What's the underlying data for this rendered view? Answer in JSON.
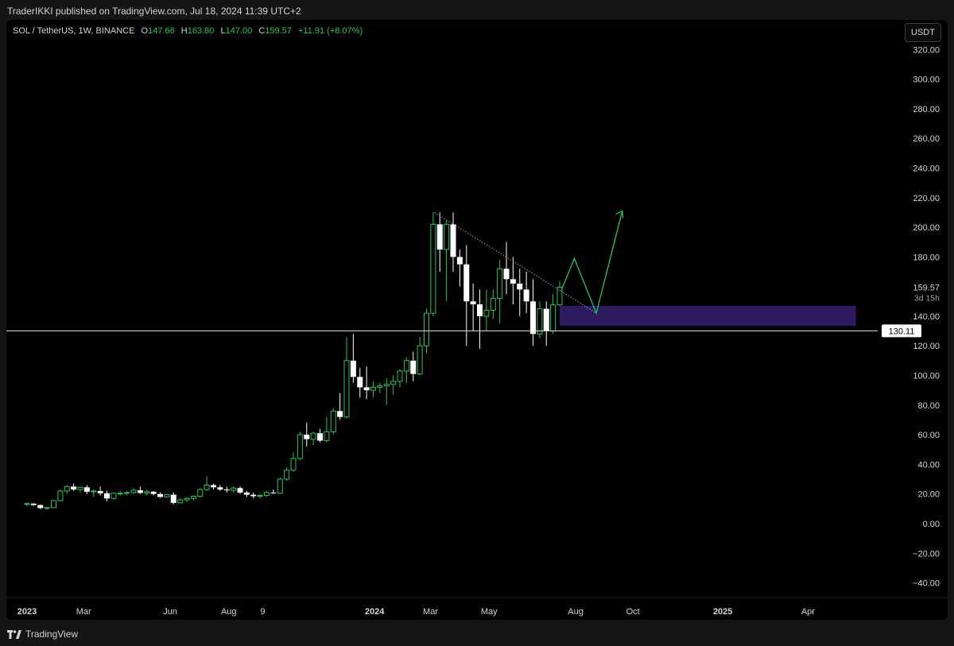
{
  "published_text": "TraderIKKI published on TradingView.com, Jul 18, 2024 11:39 UTC+2",
  "legend": {
    "symbol": "SOL / TetherUS, 1W, BINANCE",
    "o_label": "O",
    "o": "147.66",
    "h_label": "H",
    "h": "163.80",
    "l_label": "L",
    "l": "147.00",
    "c_label": "C",
    "c": "159.57",
    "change": "+11.91 (+8.07%)"
  },
  "currency_button": "USDT",
  "footer_brand": "TradingView",
  "colors": {
    "up": "#22c55e",
    "down": "#ffffff",
    "zone": "#2e1a5e",
    "background": "#000000"
  },
  "chart_data": {
    "type": "candlestick",
    "symbol": "SOL / TetherUS",
    "interval": "1W",
    "exchange": "BINANCE",
    "y_ticks": [
      "320.00",
      "300.00",
      "280.00",
      "260.00",
      "240.00",
      "220.00",
      "200.00",
      "180.00",
      "140.00",
      "120.00",
      "100.00",
      "80.00",
      "60.00",
      "40.00",
      "20.00",
      "0.00",
      "−20.00",
      "−40.00"
    ],
    "y_tick_values": [
      320,
      300,
      280,
      260,
      240,
      220,
      200,
      180,
      140,
      120,
      100,
      80,
      60,
      40,
      20,
      0,
      -20,
      -40
    ],
    "ylim": [
      -44,
      325
    ],
    "x_ticks": [
      {
        "label": "2023",
        "bold": true,
        "week": 0
      },
      {
        "label": "Mar",
        "bold": false,
        "week": 8.5
      },
      {
        "label": "Jun",
        "bold": false,
        "week": 21.5
      },
      {
        "label": "Aug",
        "bold": false,
        "week": 30.3
      },
      {
        "label": "9",
        "bold": false,
        "week": 35.4
      },
      {
        "label": "2024",
        "bold": true,
        "week": 52.2
      },
      {
        "label": "Mar",
        "bold": false,
        "week": 60.6
      },
      {
        "label": "May",
        "bold": false,
        "week": 69.4
      },
      {
        "label": "Aug",
        "bold": false,
        "week": 82.4
      },
      {
        "label": "Oct",
        "bold": false,
        "week": 91
      },
      {
        "label": "2025",
        "bold": true,
        "week": 104.5
      },
      {
        "label": "Apr",
        "bold": false,
        "week": 117.3
      }
    ],
    "candles": [
      [
        13,
        14,
        12,
        13.5
      ],
      [
        13.5,
        13.8,
        12,
        12.5
      ],
      [
        12.5,
        13,
        9.8,
        10.5
      ],
      [
        10.5,
        11,
        9.5,
        10.8
      ],
      [
        10.8,
        16,
        10.5,
        15.5
      ],
      [
        15.5,
        23,
        15,
        22
      ],
      [
        22,
        26,
        20,
        25
      ],
      [
        25,
        27,
        22,
        23
      ],
      [
        23,
        25,
        21,
        24.5
      ],
      [
        24.5,
        26,
        20,
        21.5
      ],
      [
        21.5,
        23,
        18,
        22
      ],
      [
        22,
        25,
        19,
        20.5
      ],
      [
        20.5,
        22,
        15,
        17
      ],
      [
        17,
        21,
        16,
        20.5
      ],
      [
        20.5,
        22,
        19,
        20.5
      ],
      [
        20.5,
        22,
        19,
        21
      ],
      [
        21,
        24,
        20,
        22.5
      ],
      [
        22.5,
        25,
        20,
        20.7
      ],
      [
        20.7,
        23,
        19,
        21.5
      ],
      [
        21.5,
        22,
        19,
        20
      ],
      [
        20,
        21,
        17.5,
        18
      ],
      [
        18,
        20,
        17.5,
        19.5
      ],
      [
        19.5,
        21,
        13,
        14
      ],
      [
        14,
        17,
        13.5,
        16
      ],
      [
        16,
        18,
        14.5,
        17
      ],
      [
        17,
        19,
        15.5,
        18.5
      ],
      [
        18.5,
        24,
        17.5,
        23
      ],
      [
        23,
        32,
        22,
        26
      ],
      [
        26,
        27,
        23,
        24.5
      ],
      [
        24.5,
        26,
        22,
        23
      ],
      [
        23,
        25,
        21,
        22.5
      ],
      [
        22.5,
        25,
        21,
        24
      ],
      [
        24,
        25,
        20,
        21
      ],
      [
        21,
        22,
        18,
        19.5
      ],
      [
        19.5,
        21,
        17,
        18.5
      ],
      [
        18.5,
        20,
        17,
        19
      ],
      [
        19,
        22,
        18,
        21
      ],
      [
        21,
        23,
        20,
        20.5
      ],
      [
        20.5,
        31,
        20,
        30
      ],
      [
        30,
        38,
        29,
        36
      ],
      [
        36,
        48,
        35,
        44
      ],
      [
        44,
        62,
        43,
        60
      ],
      [
        60,
        68,
        52,
        57
      ],
      [
        57,
        62,
        53,
        61
      ],
      [
        61,
        64,
        55,
        56
      ],
      [
        56,
        72,
        55,
        62
      ],
      [
        62,
        78,
        60,
        76
      ],
      [
        76,
        88,
        70,
        72
      ],
      [
        72,
        126,
        71,
        110
      ],
      [
        110,
        128,
        95,
        99
      ],
      [
        99,
        105,
        85,
        92
      ],
      [
        92,
        106,
        84,
        90
      ],
      [
        90,
        96,
        85,
        92
      ],
      [
        92,
        95,
        88,
        93
      ],
      [
        93,
        98,
        80,
        94
      ],
      [
        94,
        100,
        87,
        96
      ],
      [
        96,
        104,
        92,
        103
      ],
      [
        103,
        112,
        95,
        110
      ],
      [
        110,
        116,
        96,
        101
      ],
      [
        101,
        126,
        100,
        120
      ],
      [
        120,
        145,
        115,
        142
      ],
      [
        142,
        210,
        140,
        202
      ],
      [
        202,
        210,
        170,
        185
      ],
      [
        185,
        205,
        150,
        202
      ],
      [
        202,
        210,
        170,
        180
      ],
      [
        180,
        185,
        160,
        175
      ],
      [
        175,
        188,
        120,
        150
      ],
      [
        150,
        162,
        130,
        148
      ],
      [
        148,
        158,
        118,
        140
      ],
      [
        140,
        158,
        130,
        144
      ],
      [
        144,
        158,
        138,
        152
      ],
      [
        152,
        178,
        135,
        172
      ],
      [
        172,
        190,
        155,
        165
      ],
      [
        165,
        180,
        148,
        162
      ],
      [
        162,
        172,
        140,
        158
      ],
      [
        158,
        170,
        142,
        150
      ],
      [
        150,
        165,
        120,
        128
      ],
      [
        128,
        150,
        125,
        145
      ],
      [
        145,
        150,
        120,
        130
      ],
      [
        130,
        155,
        128,
        147.66
      ],
      [
        147.66,
        163.8,
        147,
        159.57
      ]
    ],
    "current_price": "159.57",
    "countdown": "3d 15h",
    "horizontal_line": {
      "value": 130.11,
      "label": "130.11"
    },
    "trendline": [
      [
        61.2,
        210
      ],
      [
        80.2,
        157
      ]
    ],
    "zone": {
      "x_start_week": 80,
      "x_end_week": 124.5,
      "y_low": 133.5,
      "y_high": 147
    },
    "projection_path": [
      [
        80.3,
        158
      ],
      [
        82.2,
        179
      ],
      [
        85.5,
        142
      ],
      [
        89.4,
        211
      ]
    ]
  }
}
